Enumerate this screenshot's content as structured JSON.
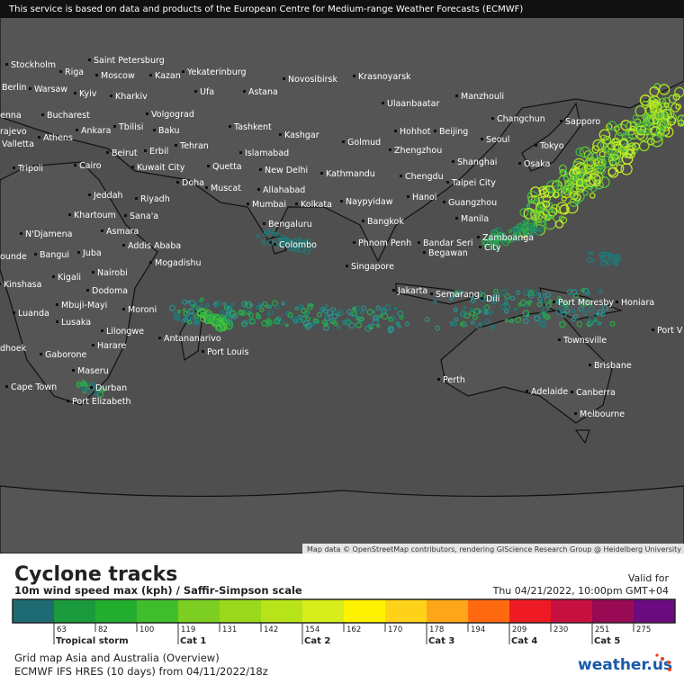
{
  "header": {
    "notice": "This service is based on data and products of the European Centre for Medium-range Weather Forecasts (ECMWF)"
  },
  "map": {
    "attribution": "Map data © OpenStreetMap contributors, rendering GIScience Research Group @ Heidelberg University",
    "cities": [
      "Stockholm",
      "Riga",
      "Saint Petersburg",
      "Moscow",
      "Kazan",
      "Yekaterinburg",
      "Novosibirsk",
      "Krasnoyarsk",
      "Berlin",
      "Warsaw",
      "Kyiv",
      "Kharkiv",
      "Ufa",
      "Astana",
      "Ulaanbaatar",
      "Manzhouli",
      "enna",
      "Bucharest",
      "Volgograd",
      "Changchun",
      "Sapporo",
      "rajevo",
      "Valletta",
      "Athens",
      "Ankara",
      "Tbilisi",
      "Baku",
      "Tashkent",
      "Kashgar",
      "Hohhot",
      "Beijing",
      "Seoul",
      "Golmud",
      "Tripoli",
      "Beirut",
      "Erbil",
      "Tehran",
      "Islamabad",
      "Zhengzhou",
      "Tokyo",
      "Cairo",
      "Kuwait City",
      "Quetta",
      "New Delhi",
      "Kathmandu",
      "Shanghai",
      "Osaka",
      "Chengdu",
      "Taipei City",
      "Jeddah",
      "Riyadh",
      "Doha",
      "Muscat",
      "Allahabad",
      "Naypyidaw",
      "Hanoi",
      "Mumbai",
      "Kolkata",
      "Guangzhou",
      "Khartoum",
      "Sana'a",
      "Bengaluru",
      "Bangkok",
      "Manila",
      "Zamboanga",
      "City",
      "N'Djamena",
      "Asmara",
      "Addis Ababa",
      "Colombo",
      "Phnom Penh",
      "Bandar Seri",
      "Begawan",
      "ounde",
      "Bangui",
      "Juba",
      "Mogadishu",
      "Singapore",
      "Nairobi",
      "Kinshasa",
      "Kigali",
      "Dodoma",
      "Jakarta",
      "Semarang",
      "Dili",
      "Port Moresby",
      "Honiara",
      "Luanda",
      "Mbuji-Mayi",
      "Moroni",
      "Lusaka",
      "Lilongwe",
      "Antananarivo",
      "Townsville",
      "Port V",
      "dhoek",
      "Harare",
      "Port Louis",
      "Gaborone",
      "Brisbane",
      "Maseru",
      "Perth",
      "Cape Town",
      "Durban",
      "Adelaide",
      "Canberra",
      "Port Elizabeth",
      "Melbourne"
    ]
  },
  "legend": {
    "title": "Cyclone tracks",
    "subtitle": "10m wind speed max (kph) / Saffir-Simpson scale",
    "valid_label": "Valid for",
    "valid_time": "Thu 04/21/2022, 10:00pm GMT+04",
    "scale": [
      "63",
      "82",
      "100",
      "119",
      "131",
      "142",
      "154",
      "162",
      "170",
      "178",
      "194",
      "209",
      "230",
      "251",
      "275"
    ],
    "categories": [
      "Tropical storm",
      "Cat 1",
      "Cat 2",
      "Cat 3",
      "Cat 4",
      "Cat 5"
    ],
    "grid": "Grid map Asia and Australia (Overview)",
    "model": "ECMWF IFS HRES (10 days) from 04/11/2022/18z",
    "logo": "weather.us"
  }
}
